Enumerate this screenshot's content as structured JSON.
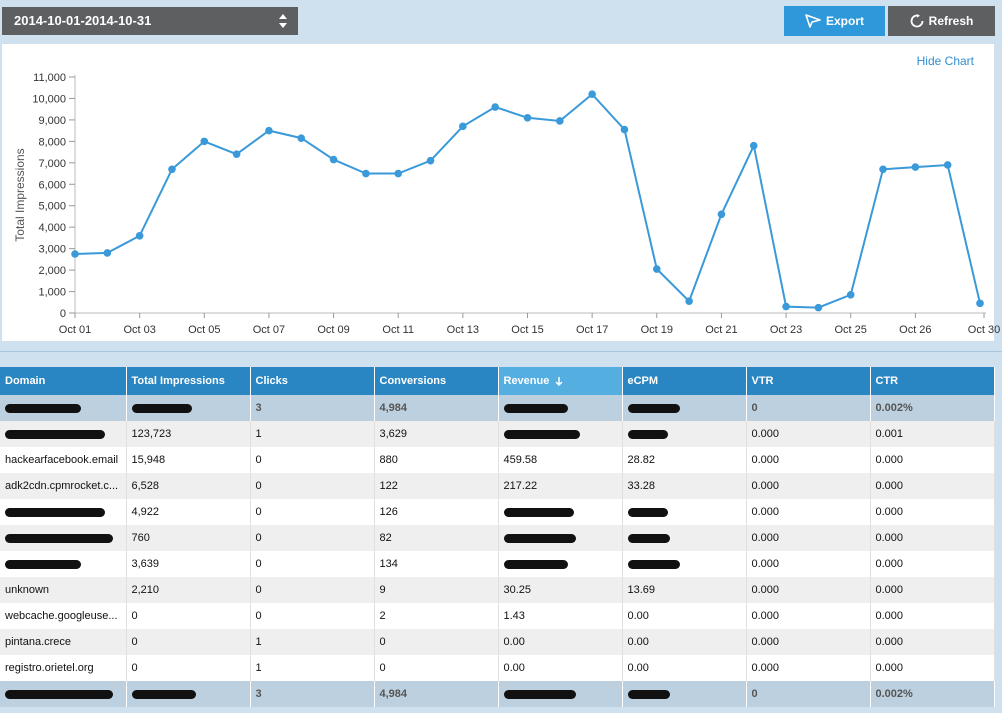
{
  "toolbar": {
    "date_range": "2014-10-01-2014-10-31",
    "export_label": "Export",
    "refresh_label": "Refresh"
  },
  "chart": {
    "hide_label": "Hide Chart"
  },
  "chart_data": {
    "type": "line",
    "ylabel": "Total Impressions",
    "ylim": [
      0,
      11000
    ],
    "y_ticks": [
      "0",
      "1,000",
      "2,000",
      "3,000",
      "4,000",
      "5,000",
      "6,000",
      "7,000",
      "8,000",
      "9,000",
      "10,000",
      "11,000"
    ],
    "x_tick_labels": [
      "Oct 01",
      "Oct 03",
      "Oct 05",
      "Oct 07",
      "Oct 09",
      "Oct 11",
      "Oct 13",
      "Oct 15",
      "Oct 17",
      "Oct 19",
      "Oct 21",
      "Oct 23",
      "Oct 25",
      "Oct 26",
      "Oct 30"
    ],
    "series": [
      {
        "color": "#3a9ad9",
        "values": [
          2750,
          2800,
          3600,
          6700,
          8000,
          7400,
          8500,
          8150,
          7150,
          6500,
          6500,
          7100,
          8700,
          9600,
          9100,
          8950,
          10200,
          8550,
          2050,
          550,
          4600,
          7800,
          300,
          250,
          850,
          6700,
          6800,
          6900,
          450
        ]
      }
    ]
  },
  "table": {
    "columns": [
      "Domain",
      "Total Impressions",
      "Clicks",
      "Conversions",
      "Revenue",
      "eCPM",
      "VTR",
      "CTR"
    ],
    "sort_icon": "arrow-down-icon",
    "total_top": [
      "",
      "",
      "3",
      "4,984",
      "",
      "",
      "0",
      "0.002%"
    ],
    "rows": [
      [
        "",
        "123,723",
        "1",
        "3,629",
        "",
        "",
        "0.000",
        "0.001"
      ],
      [
        "hackearfacebook.email",
        "15,948",
        "0",
        "880",
        "459.58",
        "28.82",
        "0.000",
        "0.000"
      ],
      [
        "adk2cdn.cpmrocket.c...",
        "6,528",
        "0",
        "122",
        "217.22",
        "33.28",
        "0.000",
        "0.000"
      ],
      [
        "",
        "4,922",
        "0",
        "126",
        "",
        "",
        "0.000",
        "0.000"
      ],
      [
        "",
        "760",
        "0",
        "82",
        "",
        "",
        "0.000",
        "0.000"
      ],
      [
        "",
        "3,639",
        "0",
        "134",
        "",
        "",
        "0.000",
        "0.000"
      ],
      [
        "unknown",
        "2,210",
        "0",
        "9",
        "30.25",
        "13.69",
        "0.000",
        "0.000"
      ],
      [
        "webcache.googleuse...",
        "0",
        "0",
        "2",
        "1.43",
        "0.00",
        "0.000",
        "0.000"
      ],
      [
        "pintana.crece",
        "0",
        "1",
        "0",
        "0.00",
        "0.00",
        "0.000",
        "0.000"
      ],
      [
        "registro.orietel.org",
        "0",
        "1",
        "0",
        "0.00",
        "0.00",
        "0.000",
        "0.000"
      ]
    ],
    "total_bottom": [
      "",
      "",
      "3",
      "4,984",
      "",
      "",
      "0",
      "0.002%"
    ]
  }
}
